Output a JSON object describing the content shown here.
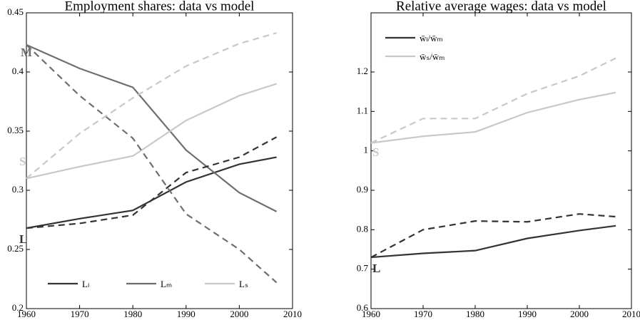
{
  "chart_data": [
    {
      "type": "line",
      "title": "Employment shares: data vs model",
      "x": [
        1960,
        1970,
        1980,
        1990,
        2000,
        2007
      ],
      "series": [
        {
          "name": "Lₗ",
          "color": "#333333",
          "dash": false,
          "values": [
            0.268,
            0.276,
            0.283,
            0.307,
            0.322,
            0.328
          ]
        },
        {
          "name": "Lₘ",
          "color": "#6e6e6e",
          "dash": false,
          "values": [
            0.423,
            0.403,
            0.387,
            0.334,
            0.298,
            0.282
          ]
        },
        {
          "name": "Lₛ",
          "color": "#c8c8c8",
          "dash": false,
          "values": [
            0.31,
            0.32,
            0.329,
            0.359,
            0.38,
            0.39
          ]
        },
        {
          "color": "#333333",
          "dash": true,
          "values": [
            0.268,
            0.272,
            0.279,
            0.315,
            0.328,
            0.345
          ]
        },
        {
          "color": "#6e6e6e",
          "dash": true,
          "values": [
            0.423,
            0.38,
            0.344,
            0.28,
            0.25,
            0.222
          ]
        },
        {
          "color": "#c8c8c8",
          "dash": true,
          "values": [
            0.31,
            0.348,
            0.378,
            0.405,
            0.424,
            0.433
          ]
        }
      ],
      "xlim": [
        1960,
        2010
      ],
      "xticks": [
        1960,
        1970,
        1980,
        1990,
        2000,
        2010
      ],
      "ylim": [
        0.2,
        0.45
      ],
      "yticks": [
        0.2,
        0.25,
        0.3,
        0.35,
        0.4,
        0.45
      ],
      "annotations": [
        "M",
        "S",
        "L"
      ],
      "legend": "lower center"
    },
    {
      "type": "line",
      "title": "Relative average wages: data vs model",
      "x": [
        1960,
        1970,
        1980,
        1990,
        2000,
        2007
      ],
      "series": [
        {
          "name": "w̄ₗ/w̄ₘ",
          "color": "#333333",
          "dash": false,
          "values": [
            0.73,
            0.74,
            0.747,
            0.778,
            0.798,
            0.81
          ]
        },
        {
          "name": "w̄ₛ/w̄ₘ",
          "color": "#c8c8c8",
          "dash": false,
          "values": [
            1.02,
            1.037,
            1.048,
            1.097,
            1.13,
            1.148
          ]
        },
        {
          "color": "#333333",
          "dash": true,
          "values": [
            0.73,
            0.8,
            0.822,
            0.82,
            0.84,
            0.833
          ]
        },
        {
          "color": "#c8c8c8",
          "dash": true,
          "values": [
            1.02,
            1.082,
            1.082,
            1.145,
            1.19,
            1.235
          ]
        }
      ],
      "xlim": [
        1960,
        2010
      ],
      "xticks": [
        1960,
        1970,
        1980,
        1990,
        2000,
        2010
      ],
      "ylim": [
        0.6,
        1.35
      ],
      "yticks": [
        0.6,
        0.7,
        0.8,
        0.9,
        1,
        1.1,
        1.2
      ],
      "annotations": [
        "S",
        "L"
      ],
      "legend": "upper left"
    }
  ]
}
